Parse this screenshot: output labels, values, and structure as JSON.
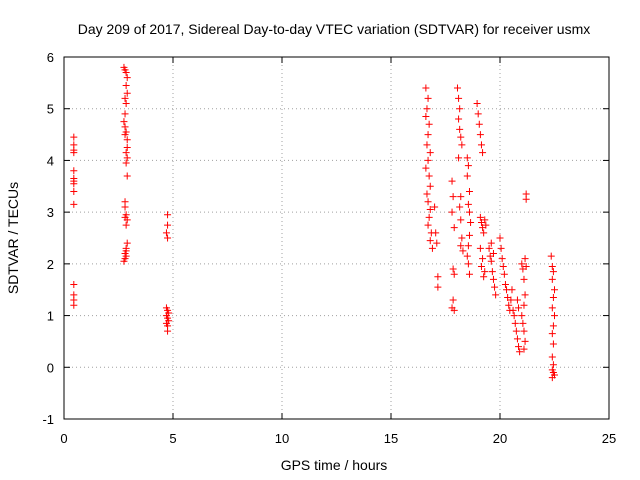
{
  "chart_data": {
    "type": "scatter",
    "title": "Day 209 of 2017, Sidereal Day-to-day VTEC variation (SDTVAR) for receiver usmx",
    "xlabel": "GPS time / hours",
    "ylabel": "SDTVAR / TECUs",
    "xlim": [
      0,
      25
    ],
    "ylim": [
      -1,
      6
    ],
    "xticks": [
      0,
      5,
      10,
      15,
      20,
      25
    ],
    "yticks": [
      -1,
      0,
      1,
      2,
      3,
      4,
      5,
      6
    ],
    "xtick_labels": [
      "0",
      "5",
      "10",
      "15",
      "20",
      "25"
    ],
    "ytick_labels": [
      "-1",
      "0",
      "1",
      "2",
      "3",
      "4",
      "5",
      "6"
    ],
    "grid": true,
    "marker": "+",
    "color": "#ff0000",
    "series": [
      {
        "name": "SDTVAR",
        "points": [
          [
            0.45,
            4.45
          ],
          [
            0.45,
            4.3
          ],
          [
            0.45,
            4.2
          ],
          [
            0.45,
            4.15
          ],
          [
            0.45,
            3.8
          ],
          [
            0.45,
            3.65
          ],
          [
            0.45,
            3.6
          ],
          [
            0.45,
            3.55
          ],
          [
            0.45,
            3.4
          ],
          [
            0.45,
            3.15
          ],
          [
            0.45,
            1.6
          ],
          [
            0.45,
            1.4
          ],
          [
            0.45,
            1.3
          ],
          [
            0.45,
            1.2
          ],
          [
            2.75,
            5.8
          ],
          [
            2.8,
            5.75
          ],
          [
            2.85,
            5.7
          ],
          [
            2.9,
            5.6
          ],
          [
            2.85,
            5.45
          ],
          [
            2.9,
            5.3
          ],
          [
            2.8,
            5.2
          ],
          [
            2.85,
            5.1
          ],
          [
            2.8,
            4.9
          ],
          [
            2.75,
            4.75
          ],
          [
            2.8,
            4.65
          ],
          [
            2.85,
            4.55
          ],
          [
            2.8,
            4.5
          ],
          [
            2.9,
            4.4
          ],
          [
            2.9,
            4.25
          ],
          [
            2.85,
            4.15
          ],
          [
            2.9,
            4.05
          ],
          [
            2.85,
            3.95
          ],
          [
            2.9,
            3.7
          ],
          [
            2.8,
            3.2
          ],
          [
            2.8,
            3.1
          ],
          [
            2.85,
            2.95
          ],
          [
            2.8,
            2.9
          ],
          [
            2.9,
            2.85
          ],
          [
            2.85,
            2.75
          ],
          [
            2.9,
            2.4
          ],
          [
            2.85,
            2.3
          ],
          [
            2.85,
            2.25
          ],
          [
            2.8,
            2.2
          ],
          [
            2.85,
            2.15
          ],
          [
            2.8,
            2.1
          ],
          [
            2.75,
            2.05
          ],
          [
            4.75,
            2.95
          ],
          [
            4.75,
            2.75
          ],
          [
            4.7,
            2.6
          ],
          [
            4.75,
            2.5
          ],
          [
            4.7,
            1.15
          ],
          [
            4.75,
            1.1
          ],
          [
            4.8,
            1.05
          ],
          [
            4.7,
            1.0
          ],
          [
            4.75,
            0.95
          ],
          [
            4.8,
            0.9
          ],
          [
            4.7,
            0.85
          ],
          [
            4.75,
            0.8
          ],
          [
            4.75,
            0.7
          ],
          [
            16.6,
            5.4
          ],
          [
            16.7,
            5.2
          ],
          [
            16.65,
            5.0
          ],
          [
            16.6,
            4.85
          ],
          [
            16.75,
            4.7
          ],
          [
            16.7,
            4.5
          ],
          [
            16.65,
            4.3
          ],
          [
            16.8,
            4.15
          ],
          [
            16.7,
            4.0
          ],
          [
            16.6,
            3.85
          ],
          [
            16.75,
            3.7
          ],
          [
            16.8,
            3.5
          ],
          [
            16.65,
            3.35
          ],
          [
            16.7,
            3.2
          ],
          [
            16.8,
            3.05
          ],
          [
            16.75,
            2.9
          ],
          [
            16.7,
            2.75
          ],
          [
            16.85,
            2.6
          ],
          [
            16.8,
            2.45
          ],
          [
            16.9,
            2.3
          ],
          [
            17.0,
            3.1
          ],
          [
            17.05,
            2.6
          ],
          [
            17.1,
            2.4
          ],
          [
            17.15,
            1.75
          ],
          [
            17.15,
            1.55
          ],
          [
            17.8,
            3.6
          ],
          [
            17.85,
            3.3
          ],
          [
            17.8,
            3.0
          ],
          [
            17.9,
            2.7
          ],
          [
            17.85,
            1.9
          ],
          [
            17.9,
            1.8
          ],
          [
            17.85,
            1.3
          ],
          [
            17.8,
            1.15
          ],
          [
            17.9,
            1.1
          ],
          [
            18.05,
            5.4
          ],
          [
            18.1,
            5.2
          ],
          [
            18.15,
            5.0
          ],
          [
            18.1,
            4.8
          ],
          [
            18.15,
            4.6
          ],
          [
            18.2,
            4.45
          ],
          [
            18.25,
            4.3
          ],
          [
            18.1,
            4.05
          ],
          [
            18.2,
            3.3
          ],
          [
            18.15,
            3.1
          ],
          [
            18.2,
            2.85
          ],
          [
            18.25,
            2.5
          ],
          [
            18.2,
            2.35
          ],
          [
            18.3,
            2.25
          ],
          [
            18.5,
            4.05
          ],
          [
            18.55,
            3.9
          ],
          [
            18.5,
            3.7
          ],
          [
            18.6,
            3.4
          ],
          [
            18.55,
            3.15
          ],
          [
            18.6,
            3.0
          ],
          [
            18.65,
            2.8
          ],
          [
            18.6,
            2.55
          ],
          [
            18.55,
            2.35
          ],
          [
            18.5,
            2.15
          ],
          [
            18.55,
            2.0
          ],
          [
            18.6,
            1.8
          ],
          [
            18.95,
            5.1
          ],
          [
            19.0,
            4.9
          ],
          [
            19.05,
            4.7
          ],
          [
            19.1,
            4.5
          ],
          [
            19.15,
            4.3
          ],
          [
            19.2,
            4.15
          ],
          [
            19.1,
            2.9
          ],
          [
            19.15,
            2.8
          ],
          [
            19.2,
            2.7
          ],
          [
            19.25,
            2.6
          ],
          [
            19.1,
            2.3
          ],
          [
            19.2,
            2.1
          ],
          [
            19.15,
            1.95
          ],
          [
            19.3,
            1.85
          ],
          [
            19.25,
            1.75
          ],
          [
            19.3,
            2.85
          ],
          [
            19.35,
            2.75
          ],
          [
            19.5,
            2.3
          ],
          [
            19.55,
            2.15
          ],
          [
            19.6,
            2.05
          ],
          [
            19.65,
            1.85
          ],
          [
            19.7,
            1.7
          ],
          [
            19.75,
            1.55
          ],
          [
            19.8,
            1.4
          ],
          [
            19.6,
            2.4
          ],
          [
            19.7,
            2.2
          ],
          [
            20.0,
            2.5
          ],
          [
            20.05,
            2.3
          ],
          [
            20.1,
            2.1
          ],
          [
            20.15,
            1.95
          ],
          [
            20.2,
            1.8
          ],
          [
            20.25,
            1.6
          ],
          [
            20.3,
            1.5
          ],
          [
            20.35,
            1.35
          ],
          [
            20.4,
            1.2
          ],
          [
            20.45,
            1.1
          ],
          [
            20.5,
            1.3
          ],
          [
            20.55,
            1.5
          ],
          [
            20.6,
            1.1
          ],
          [
            20.65,
            1.0
          ],
          [
            20.7,
            0.85
          ],
          [
            20.75,
            0.7
          ],
          [
            20.8,
            0.55
          ],
          [
            20.85,
            0.4
          ],
          [
            20.9,
            0.3
          ],
          [
            20.8,
            1.3
          ],
          [
            20.85,
            1.15
          ],
          [
            21.0,
            2.0
          ],
          [
            21.05,
            1.9
          ],
          [
            21.1,
            1.7
          ],
          [
            21.15,
            1.4
          ],
          [
            21.1,
            1.2
          ],
          [
            21.0,
            1.0
          ],
          [
            21.05,
            0.85
          ],
          [
            21.1,
            0.7
          ],
          [
            21.15,
            0.5
          ],
          [
            21.1,
            0.35
          ],
          [
            21.2,
            3.35
          ],
          [
            21.2,
            3.25
          ],
          [
            21.15,
            2.1
          ],
          [
            21.2,
            1.95
          ],
          [
            22.35,
            2.15
          ],
          [
            22.4,
            1.95
          ],
          [
            22.45,
            1.85
          ],
          [
            22.4,
            1.7
          ],
          [
            22.5,
            1.5
          ],
          [
            22.45,
            1.35
          ],
          [
            22.4,
            1.15
          ],
          [
            22.5,
            1.0
          ],
          [
            22.45,
            0.8
          ],
          [
            22.4,
            0.65
          ],
          [
            22.45,
            0.45
          ],
          [
            22.4,
            0.2
          ],
          [
            22.45,
            0.05
          ],
          [
            22.4,
            -0.05
          ],
          [
            22.45,
            -0.1
          ],
          [
            22.5,
            -0.15
          ],
          [
            22.4,
            -0.2
          ]
        ]
      }
    ]
  }
}
